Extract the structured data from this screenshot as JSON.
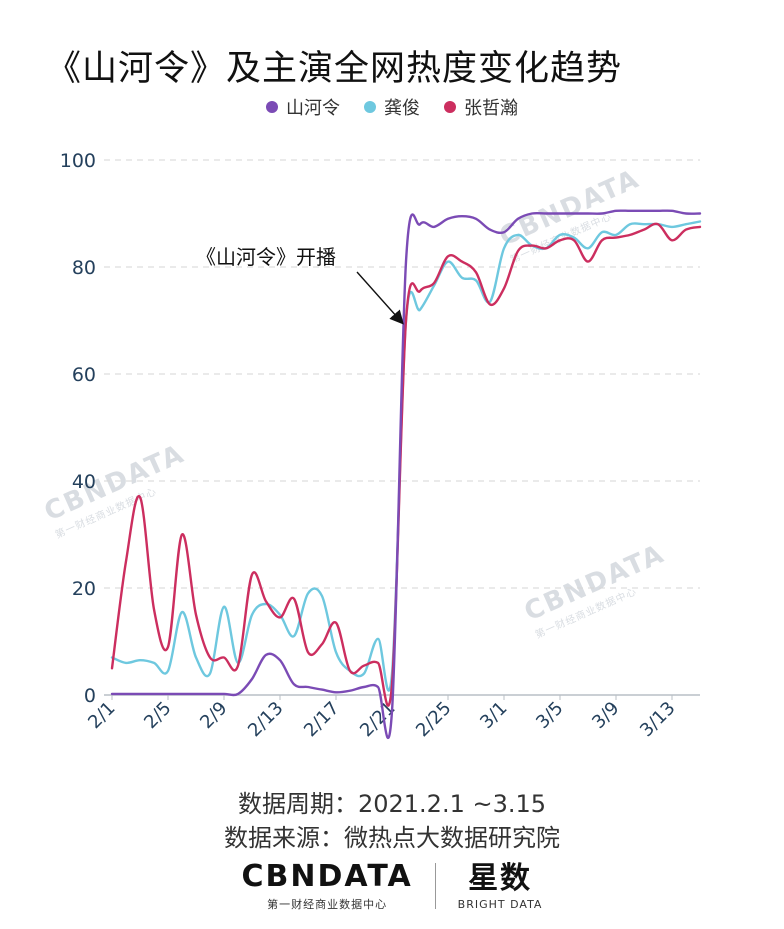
{
  "title": "《山河令》及主演全网热度变化趋势",
  "legend": [
    {
      "name": "山河令",
      "color": "#7b4bb5"
    },
    {
      "name": "龚俊",
      "color": "#6ec8df"
    },
    {
      "name": "张哲瀚",
      "color": "#cc2e5f"
    }
  ],
  "watermark": {
    "main": "CBNDATA",
    "sub": "第一财经商业数据中心"
  },
  "footer": {
    "period": "数据周期：2021.2.1 ~3.15",
    "source": "数据来源：微热点大数据研究院"
  },
  "logos": {
    "cbn_main": "CBNDATA",
    "cbn_sub": "第一财经商业数据中心",
    "star_main": "星数",
    "star_sub": "BRIGHT DATA"
  },
  "chart_data": {
    "type": "line",
    "title": "《山河令》及主演全网热度变化趋势",
    "xlabel": "",
    "ylabel": "",
    "x_tick_labels": [
      "2/1",
      "2/5",
      "2/9",
      "2/13",
      "2/17",
      "2/21",
      "2/25",
      "3/1",
      "3/5",
      "3/9",
      "3/13"
    ],
    "x_tick_positions": [
      0,
      4,
      8,
      12,
      16,
      20,
      24,
      28,
      32,
      36,
      40
    ],
    "x_day_count": 43,
    "ylim": [
      0,
      100
    ],
    "yticks": [
      0,
      20,
      40,
      60,
      80,
      100
    ],
    "grid": "horizontal-dashed",
    "legend_position": "top-center",
    "annotation": {
      "text": "《山河令》开播",
      "x": 21,
      "y": 70
    },
    "series": [
      {
        "name": "山河令",
        "color": "#7b4bb5",
        "values": [
          0.2,
          0.2,
          0.2,
          0.2,
          0.2,
          0.2,
          0.2,
          0.2,
          0.2,
          0.2,
          3,
          7.5,
          6.5,
          2,
          1.5,
          1,
          0.5,
          0.8,
          1.5,
          1.5,
          -3,
          81,
          88,
          87.5,
          89,
          89.5,
          89,
          87,
          86.5,
          89,
          90,
          90,
          90,
          90,
          90,
          90,
          90.5,
          90.5,
          90.5,
          90.5,
          90.5,
          90,
          90
        ]
      },
      {
        "name": "龚俊",
        "color": "#6ec8df",
        "values": [
          7,
          6,
          6.5,
          6,
          4.5,
          15.5,
          7,
          4,
          16.5,
          6,
          15,
          17,
          15,
          11,
          19,
          18.5,
          8,
          4.5,
          4,
          10.5,
          4,
          70,
          72,
          76.5,
          81,
          78,
          77.5,
          73.5,
          83.5,
          86,
          84,
          83.5,
          86,
          85.5,
          83.5,
          86.5,
          86,
          88,
          88,
          88,
          87.5,
          88,
          88.5
        ]
      },
      {
        "name": "张哲瀚",
        "color": "#cc2e5f",
        "values": [
          5,
          25,
          37,
          16,
          9,
          30,
          15,
          7,
          7,
          5.5,
          22.5,
          17.5,
          14.5,
          18,
          8,
          9.5,
          13.5,
          4.5,
          5.5,
          6,
          2,
          70,
          75.5,
          77,
          82,
          81,
          79,
          73,
          76,
          83,
          84,
          83.5,
          85,
          85,
          81,
          85,
          85.5,
          86,
          87,
          88,
          85,
          87,
          87.5
        ]
      }
    ]
  }
}
